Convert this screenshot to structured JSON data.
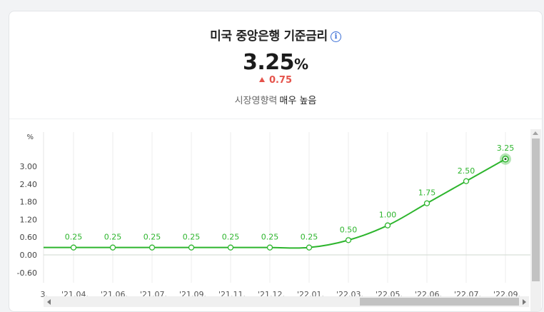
{
  "header": {
    "title": "미국 중앙은행 기준금리",
    "info_icon": "info-icon",
    "value": "3.25",
    "unit": "%",
    "change": "0.75",
    "change_direction": "up",
    "impact_label": "시장영향력",
    "impact_level": "매우 높음"
  },
  "colors": {
    "line": "#2db52d",
    "up": "#e5534b",
    "grid": "#eeeeee"
  },
  "chart_data": {
    "type": "line",
    "ylabel": "%",
    "y_ticks": [
      3.0,
      2.4,
      1.8,
      1.2,
      0.6,
      0.0,
      -0.6
    ],
    "y_tick_labels": [
      "3.00",
      "2.40",
      "1.80",
      "1.20",
      "0.60",
      "0.00",
      "-0.60"
    ],
    "ylim": [
      -0.6,
      3.6
    ],
    "partial_left_label": "3.",
    "categories": [
      "'21.04.",
      "'21.06.",
      "'21.07.",
      "'21.09.",
      "'21.11.",
      "'21.12.",
      "'22.01.",
      "'22.03.",
      "'22.05.",
      "'22.06.",
      "'22.07.",
      "'22.09."
    ],
    "values": [
      0.25,
      0.25,
      0.25,
      0.25,
      0.25,
      0.25,
      0.25,
      0.5,
      1.0,
      1.75,
      2.5,
      3.25
    ],
    "data_labels": [
      "0.25",
      "0.25",
      "0.25",
      "0.25",
      "0.25",
      "0.25",
      "0.25",
      "0.50",
      "1.00",
      "1.75",
      "2.50",
      "3.25"
    ],
    "highlight_last": true,
    "grid": "vertical",
    "legend": "none"
  }
}
